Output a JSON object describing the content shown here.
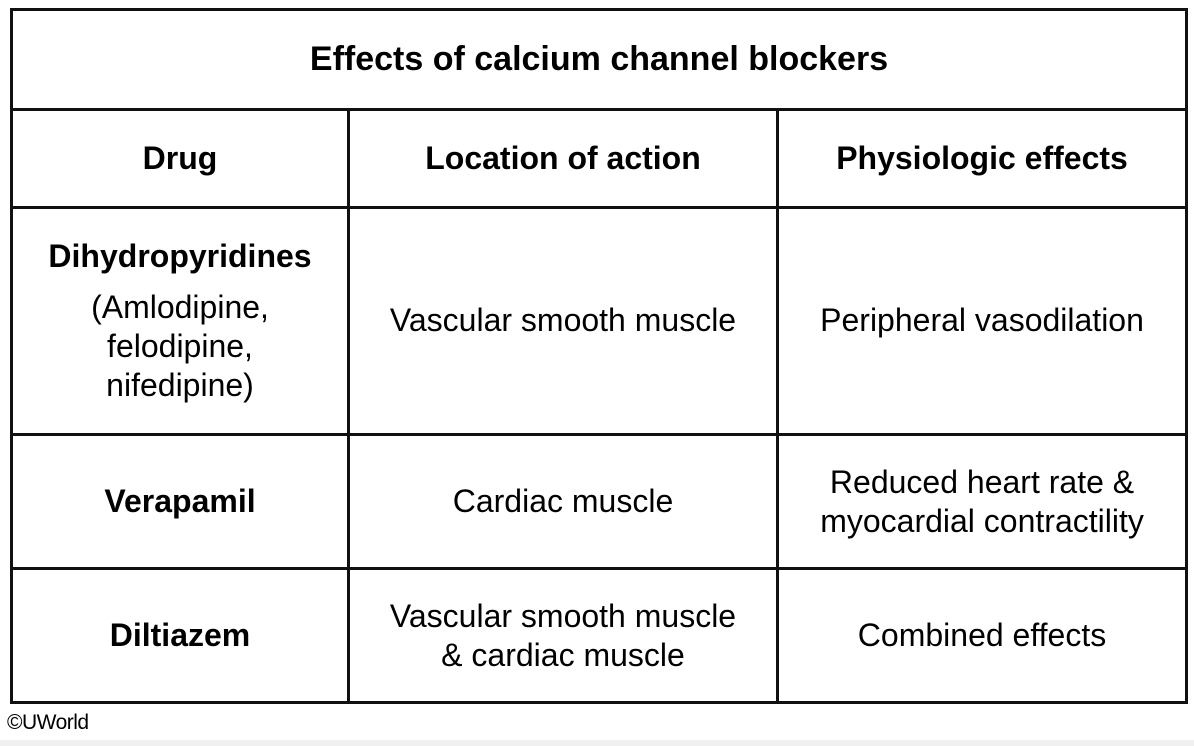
{
  "table": {
    "title": "Effects of calcium channel blockers",
    "headers": [
      "Drug",
      "Location of action",
      "Physiologic effects"
    ],
    "rows": [
      {
        "drug": "Dihydropyridines",
        "drug_detail": [
          "(Amlodipine,",
          "felodipine,",
          "nifedipine)"
        ],
        "location": [
          "Vascular smooth muscle"
        ],
        "effects": [
          "Peripheral vasodilation"
        ]
      },
      {
        "drug": "Verapamil",
        "location": [
          "Cardiac muscle"
        ],
        "effects": [
          "Reduced heart rate &",
          "myocardial contractility"
        ]
      },
      {
        "drug": "Diltiazem",
        "location": [
          "Vascular smooth muscle",
          "& cardiac muscle"
        ],
        "effects": [
          "Combined effects"
        ]
      }
    ]
  },
  "footer": {
    "copyright": "©UWorld"
  }
}
